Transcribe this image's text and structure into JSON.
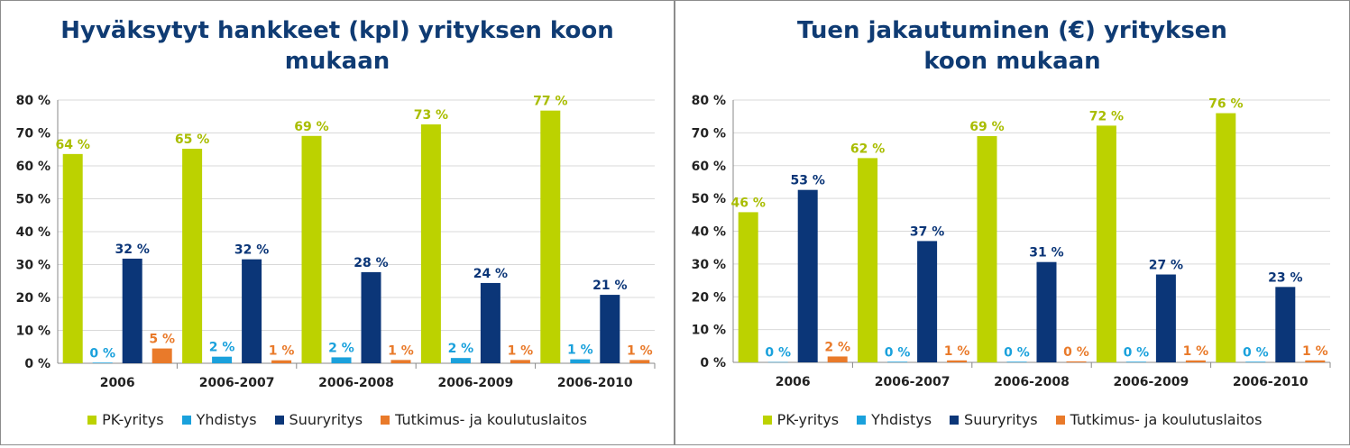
{
  "chart_data": [
    {
      "type": "bar",
      "title_lines": [
        "Hyväksytyt hankkeet (kpl) yrityksen koon",
        "mukaan"
      ],
      "categories": [
        "2006",
        "2006-2007",
        "2006-2008",
        "2006-2009",
        "2006-2010"
      ],
      "ylim": [
        0,
        80
      ],
      "yticks": [
        "0 %",
        "10 %",
        "20 %",
        "30 %",
        "40 %",
        "50 %",
        "60 %",
        "70 %",
        "80 %"
      ],
      "grid": true,
      "legend_position": "bottom",
      "series": [
        {
          "name": "PK-yritys",
          "color": "#bcd200",
          "values": [
            63.6,
            65.2,
            69.1,
            72.6,
            76.8
          ],
          "labels": [
            "64 %",
            "65 %",
            "69 %",
            "73 %",
            "77 %"
          ]
        },
        {
          "name": "Yhdistys",
          "color": "#1aa1dc",
          "values": [
            0.2,
            2.0,
            1.8,
            1.6,
            1.2
          ],
          "labels": [
            "0 %",
            "2 %",
            "2 %",
            "2 %",
            "1 %"
          ]
        },
        {
          "name": "Suuryritys",
          "color": "#0b3678",
          "values": [
            31.8,
            31.6,
            27.7,
            24.4,
            20.8
          ],
          "labels": [
            "32 %",
            "32 %",
            "28 %",
            "24 %",
            "21 %"
          ]
        },
        {
          "name": "Tutkimus- ja koulutuslaitos",
          "color": "#e97a2a",
          "values": [
            4.5,
            0.9,
            1.0,
            1.0,
            1.0
          ],
          "labels": [
            "5 %",
            "1 %",
            "1 %",
            "1 %",
            "1 %"
          ]
        }
      ]
    },
    {
      "type": "bar",
      "title_lines": [
        "Tuen jakautuminen (€) yrityksen",
        "koon mukaan"
      ],
      "categories": [
        "2006",
        "2006-2007",
        "2006-2008",
        "2006-2009",
        "2006-2010"
      ],
      "ylim": [
        0,
        80
      ],
      "yticks": [
        "0 %",
        "10 %",
        "20 %",
        "30 %",
        "40 %",
        "50 %",
        "60 %",
        "70 %",
        "80 %"
      ],
      "grid": true,
      "legend_position": "bottom",
      "series": [
        {
          "name": "PK-yritys",
          "color": "#bcd200",
          "values": [
            45.8,
            62.3,
            69.0,
            72.2,
            76.0
          ],
          "labels": [
            "46 %",
            "62 %",
            "69 %",
            "72 %",
            "76 %"
          ]
        },
        {
          "name": "Yhdistys",
          "color": "#1aa1dc",
          "values": [
            0.1,
            0.2,
            0.2,
            0.2,
            0.2
          ],
          "labels": [
            "0 %",
            "0 %",
            "0 %",
            "0 %",
            "0 %"
          ]
        },
        {
          "name": "Suuryritys",
          "color": "#0b3678",
          "values": [
            52.6,
            37.0,
            30.6,
            26.8,
            23.0
          ],
          "labels": [
            "53 %",
            "37 %",
            "31 %",
            "27 %",
            "23 %"
          ]
        },
        {
          "name": "Tutkimus- ja koulutuslaitos",
          "color": "#e97a2a",
          "values": [
            1.8,
            0.6,
            0.3,
            0.6,
            0.6
          ],
          "labels": [
            "2 %",
            "1 %",
            "0 %",
            "1 %",
            "1 %"
          ]
        }
      ]
    }
  ]
}
